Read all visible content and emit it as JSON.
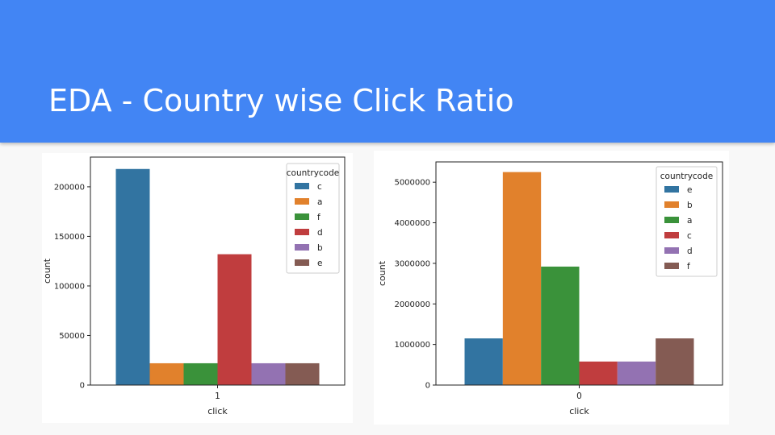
{
  "slide": {
    "title": "EDA - Country wise Click Ratio"
  },
  "colors": {
    "header": "#4285f4",
    "c": "#3274a1",
    "a": "#e1812c",
    "f": "#3a923a",
    "d": "#c03d3e",
    "b": "#9372b2",
    "e": "#845b53"
  },
  "chart_data": [
    {
      "type": "bar",
      "categories": [
        "1"
      ],
      "xlabel": "click",
      "ylabel": "count",
      "ylim": [
        0,
        230000
      ],
      "yticks": [
        0,
        50000,
        100000,
        150000,
        200000
      ],
      "legend_title": "countrycode",
      "legend_position": "top-right",
      "grid": false,
      "series": [
        {
          "name": "c",
          "values": [
            218000
          ],
          "color": "#3274a1"
        },
        {
          "name": "a",
          "values": [
            22000
          ],
          "color": "#e1812c"
        },
        {
          "name": "f",
          "values": [
            22000
          ],
          "color": "#3a923a"
        },
        {
          "name": "d",
          "values": [
            132000
          ],
          "color": "#c03d3e"
        },
        {
          "name": "b",
          "values": [
            22000
          ],
          "color": "#9372b2"
        },
        {
          "name": "e",
          "values": [
            22000
          ],
          "color": "#845b53"
        }
      ]
    },
    {
      "type": "bar",
      "categories": [
        "0"
      ],
      "xlabel": "click",
      "ylabel": "count",
      "ylim": [
        0,
        5500000
      ],
      "yticks": [
        0,
        1000000,
        2000000,
        3000000,
        4000000,
        5000000
      ],
      "legend_title": "countrycode",
      "legend_position": "top-right",
      "grid": false,
      "series": [
        {
          "name": "e",
          "values": [
            1150000
          ],
          "color": "#3274a1"
        },
        {
          "name": "b",
          "values": [
            5250000
          ],
          "color": "#e1812c"
        },
        {
          "name": "a",
          "values": [
            2920000
          ],
          "color": "#3a923a"
        },
        {
          "name": "c",
          "values": [
            580000
          ],
          "color": "#c03d3e"
        },
        {
          "name": "d",
          "values": [
            580000
          ],
          "color": "#9372b2"
        },
        {
          "name": "f",
          "values": [
            1150000
          ],
          "color": "#845b53"
        }
      ]
    }
  ]
}
